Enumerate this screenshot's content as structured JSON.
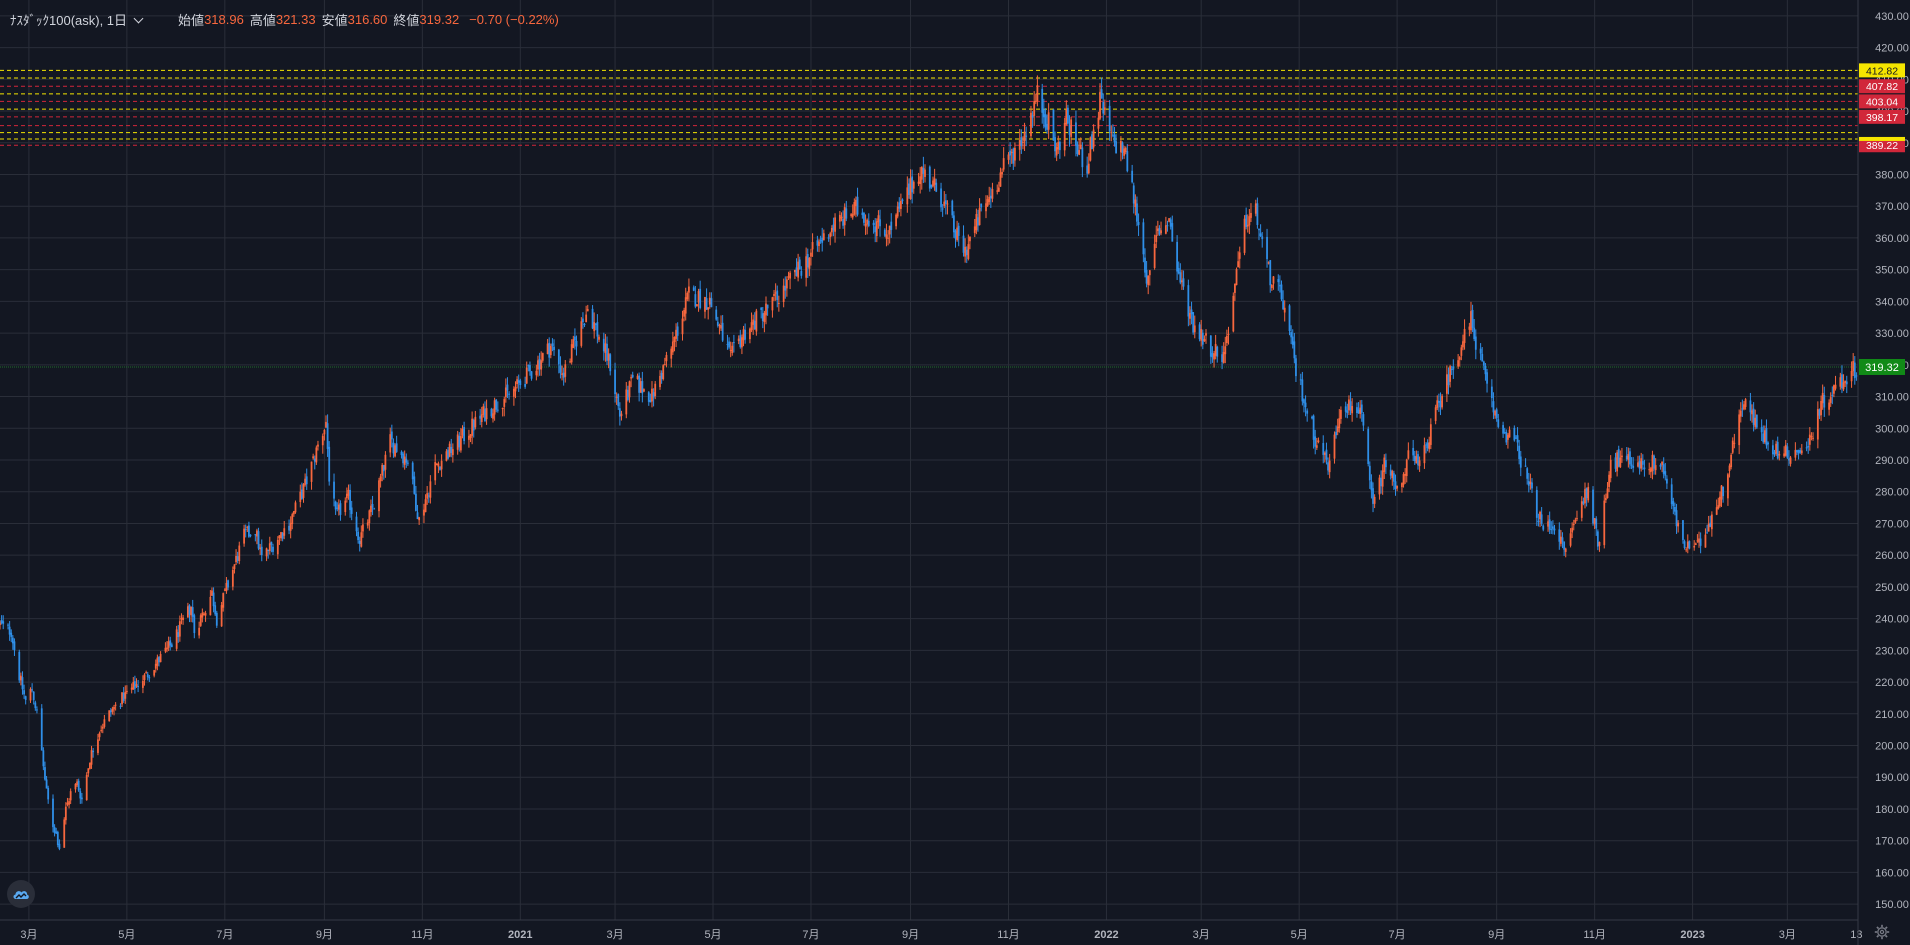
{
  "legend": {
    "symbol": "ﾅｽﾀﾞｯｸ100(ask), 1日",
    "open_label": "始値",
    "open": "318.96",
    "high_label": "高値",
    "high": "321.33",
    "low_label": "安値",
    "low": "316.60",
    "close_label": "終値",
    "close": "319.32",
    "change": "−0.70 (−0.22%)"
  },
  "colors": {
    "background": "#131722",
    "grid": "#2a2e39",
    "up": "#f7673e",
    "down": "#2f8fe8",
    "axis_text": "#b2b5be",
    "price_line": "#1f6b2b",
    "price_label": "#118a17",
    "level_red": "#d1273a",
    "level_yellow": "#f5e500"
  },
  "chart_data": {
    "type": "candlestick",
    "interval": "1日",
    "ylim": [
      145,
      435
    ],
    "y_ticks": [
      150,
      160,
      170,
      180,
      190,
      200,
      210,
      220,
      230,
      240,
      250,
      260,
      270,
      280,
      290,
      300,
      310,
      320,
      330,
      340,
      350,
      360,
      370,
      380,
      390,
      400,
      410,
      420,
      430
    ],
    "y_axis_position": "right",
    "x_labels": [
      {
        "date": "2020-03-01",
        "label": "3月"
      },
      {
        "date": "2020-05-01",
        "label": "5月"
      },
      {
        "date": "2020-07-01",
        "label": "7月"
      },
      {
        "date": "2020-09-01",
        "label": "9月"
      },
      {
        "date": "2020-11-01",
        "label": "11月"
      },
      {
        "date": "2021-01-01",
        "label": "2021"
      },
      {
        "date": "2021-03-01",
        "label": "3月"
      },
      {
        "date": "2021-05-01",
        "label": "5月"
      },
      {
        "date": "2021-07-01",
        "label": "7月"
      },
      {
        "date": "2021-09-01",
        "label": "9月"
      },
      {
        "date": "2021-11-01",
        "label": "11月"
      },
      {
        "date": "2022-01-01",
        "label": "2022"
      },
      {
        "date": "2022-03-01",
        "label": "3月"
      },
      {
        "date": "2022-05-01",
        "label": "5月"
      },
      {
        "date": "2022-07-01",
        "label": "7月"
      },
      {
        "date": "2022-09-01",
        "label": "9月"
      },
      {
        "date": "2022-11-01",
        "label": "11月"
      },
      {
        "date": "2023-01-01",
        "label": "2023"
      },
      {
        "date": "2023-03-01",
        "label": "3月"
      },
      {
        "date": "2023-04-13",
        "label": "13"
      }
    ],
    "xlim": [
      "2020-02-12",
      "2023-04-14"
    ],
    "price_path": [
      [
        "2020-02-12",
        238
      ],
      [
        "2020-02-19",
        236
      ],
      [
        "2020-02-24",
        222
      ],
      [
        "2020-02-28",
        214
      ],
      [
        "2020-03-03",
        218
      ],
      [
        "2020-03-06",
        210
      ],
      [
        "2020-03-09",
        198
      ],
      [
        "2020-03-12",
        185
      ],
      [
        "2020-03-16",
        175
      ],
      [
        "2020-03-18",
        172
      ],
      [
        "2020-03-20",
        168
      ],
      [
        "2020-03-24",
        180
      ],
      [
        "2020-03-27",
        185
      ],
      [
        "2020-03-31",
        188
      ],
      [
        "2020-04-03",
        183
      ],
      [
        "2020-04-08",
        196
      ],
      [
        "2020-04-14",
        205
      ],
      [
        "2020-04-20",
        210
      ],
      [
        "2020-04-30",
        216
      ],
      [
        "2020-05-13",
        222
      ],
      [
        "2020-05-29",
        232
      ],
      [
        "2020-06-10",
        244
      ],
      [
        "2020-06-12",
        236
      ],
      [
        "2020-06-23",
        248
      ],
      [
        "2020-06-26",
        240
      ],
      [
        "2020-07-09",
        260
      ],
      [
        "2020-07-13",
        266
      ],
      [
        "2020-07-20",
        268
      ],
      [
        "2020-07-24",
        259
      ],
      [
        "2020-08-10",
        270
      ],
      [
        "2020-08-20",
        282
      ],
      [
        "2020-09-02",
        302
      ],
      [
        "2020-09-04",
        285
      ],
      [
        "2020-09-08",
        272
      ],
      [
        "2020-09-16",
        278
      ],
      [
        "2020-09-23",
        265
      ],
      [
        "2020-10-02",
        276
      ],
      [
        "2020-10-12",
        296
      ],
      [
        "2020-10-23",
        290
      ],
      [
        "2020-10-30",
        271
      ],
      [
        "2020-11-09",
        288
      ],
      [
        "2020-11-24",
        296
      ],
      [
        "2020-12-10",
        305
      ],
      [
        "2020-12-28",
        312
      ],
      [
        "2021-01-08",
        318
      ],
      [
        "2021-01-20",
        326
      ],
      [
        "2021-01-28",
        317
      ],
      [
        "2021-02-12",
        338
      ],
      [
        "2021-02-26",
        320
      ],
      [
        "2021-03-04",
        304
      ],
      [
        "2021-03-12",
        315
      ],
      [
        "2021-03-24",
        310
      ],
      [
        "2021-04-05",
        325
      ],
      [
        "2021-04-16",
        342
      ],
      [
        "2021-04-29",
        340
      ],
      [
        "2021-05-12",
        322
      ],
      [
        "2021-05-20",
        330
      ],
      [
        "2021-06-08",
        340
      ],
      [
        "2021-06-30",
        354
      ],
      [
        "2021-07-15",
        364
      ],
      [
        "2021-07-29",
        369
      ],
      [
        "2021-08-19",
        362
      ],
      [
        "2021-09-07",
        382
      ],
      [
        "2021-09-20",
        373
      ],
      [
        "2021-09-30",
        360
      ],
      [
        "2021-10-05",
        356
      ],
      [
        "2021-10-15",
        368
      ],
      [
        "2021-10-29",
        382
      ],
      [
        "2021-11-10",
        392
      ],
      [
        "2021-11-19",
        405
      ],
      [
        "2021-11-26",
        396
      ],
      [
        "2021-12-01",
        387
      ],
      [
        "2021-12-07",
        398
      ],
      [
        "2021-12-14",
        388
      ],
      [
        "2021-12-20",
        383
      ],
      [
        "2021-12-28",
        403
      ],
      [
        "2022-01-05",
        390
      ],
      [
        "2022-01-12",
        388
      ],
      [
        "2022-01-21",
        365
      ],
      [
        "2022-01-27",
        345
      ],
      [
        "2022-02-02",
        362
      ],
      [
        "2022-02-09",
        366
      ],
      [
        "2022-02-14",
        350
      ],
      [
        "2022-02-24",
        333
      ],
      [
        "2022-03-08",
        325
      ],
      [
        "2022-03-15",
        323
      ],
      [
        "2022-03-29",
        366
      ],
      [
        "2022-04-04",
        368
      ],
      [
        "2022-04-12",
        349
      ],
      [
        "2022-04-21",
        340
      ],
      [
        "2022-04-29",
        318
      ],
      [
        "2022-05-11",
        297
      ],
      [
        "2022-05-20",
        288
      ],
      [
        "2022-05-27",
        308
      ],
      [
        "2022-06-08",
        306
      ],
      [
        "2022-06-16",
        275
      ],
      [
        "2022-06-24",
        290
      ],
      [
        "2022-07-01",
        280
      ],
      [
        "2022-07-08",
        291
      ],
      [
        "2022-07-15",
        288
      ],
      [
        "2022-07-29",
        311
      ],
      [
        "2022-08-16",
        334
      ],
      [
        "2022-08-26",
        313
      ],
      [
        "2022-09-02",
        301
      ],
      [
        "2022-09-13",
        295
      ],
      [
        "2022-09-30",
        268
      ],
      [
        "2022-10-07",
        270
      ],
      [
        "2022-10-13",
        261
      ],
      [
        "2022-10-28",
        282
      ],
      [
        "2022-11-03",
        263
      ],
      [
        "2022-11-11",
        290
      ],
      [
        "2022-11-30",
        289
      ],
      [
        "2022-12-13",
        289
      ],
      [
        "2022-12-22",
        270
      ],
      [
        "2022-12-28",
        262
      ],
      [
        "2023-01-05",
        263
      ],
      [
        "2023-01-20",
        281
      ],
      [
        "2023-02-02",
        310
      ],
      [
        "2023-02-10",
        300
      ],
      [
        "2023-02-24",
        292
      ],
      [
        "2023-03-13",
        293
      ],
      [
        "2023-03-22",
        308
      ],
      [
        "2023-04-06",
        316
      ],
      [
        "2023-04-13",
        319.32
      ]
    ],
    "current_price": 319.32,
    "levels": [
      {
        "value": 412.82,
        "color": "yellow",
        "label": "412.82"
      },
      {
        "value": 410.4,
        "color": "yellow",
        "label": ""
      },
      {
        "value": 407.82,
        "color": "red",
        "label": "407.82"
      },
      {
        "value": 405.4,
        "color": "yellow",
        "label": ""
      },
      {
        "value": 403.04,
        "color": "red",
        "label": "403.04"
      },
      {
        "value": 400.6,
        "color": "yellow",
        "label": ""
      },
      {
        "value": 398.17,
        "color": "red",
        "label": "398.17"
      },
      {
        "value": 395.4,
        "color": "red",
        "label": ""
      },
      {
        "value": 393.2,
        "color": "yellow",
        "label": ""
      },
      {
        "value": 391.2,
        "color": "yellow",
        "label": ""
      },
      {
        "value": 389.22,
        "color": "red",
        "label": "389.22"
      }
    ]
  }
}
